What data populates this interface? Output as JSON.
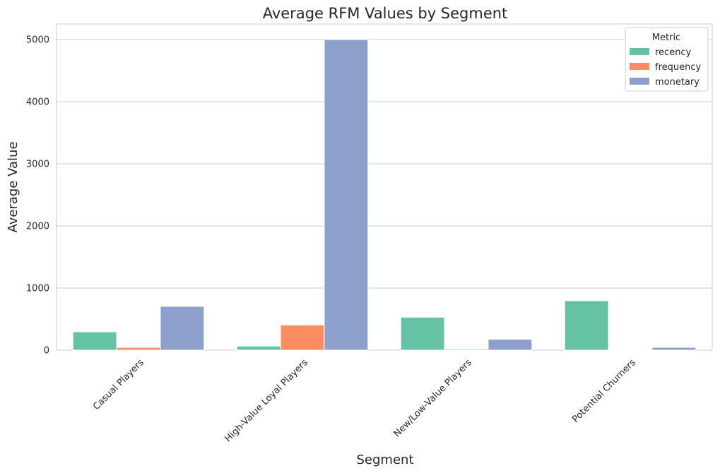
{
  "chart_data": {
    "type": "bar",
    "title": "Average RFM Values by Segment",
    "xlabel": "Segment",
    "ylabel": "Average Value",
    "categories": [
      "Casual Players",
      "High-Value Loyal Players",
      "New/Low-Value Players",
      "Potential Churners"
    ],
    "series": [
      {
        "name": "recency",
        "color": "#66c2a5",
        "values": [
          295,
          65,
          530,
          795
        ]
      },
      {
        "name": "frequency",
        "color": "#fc8d62",
        "values": [
          45,
          405,
          18,
          5
        ]
      },
      {
        "name": "monetary",
        "color": "#8da0cb",
        "values": [
          705,
          5000,
          175,
          45
        ]
      }
    ],
    "ylim": [
      0,
      5250
    ],
    "yticks": [
      0,
      1000,
      2000,
      3000,
      4000,
      5000
    ],
    "grid": true,
    "legend": {
      "title": "Metric",
      "position": "upper right"
    }
  }
}
